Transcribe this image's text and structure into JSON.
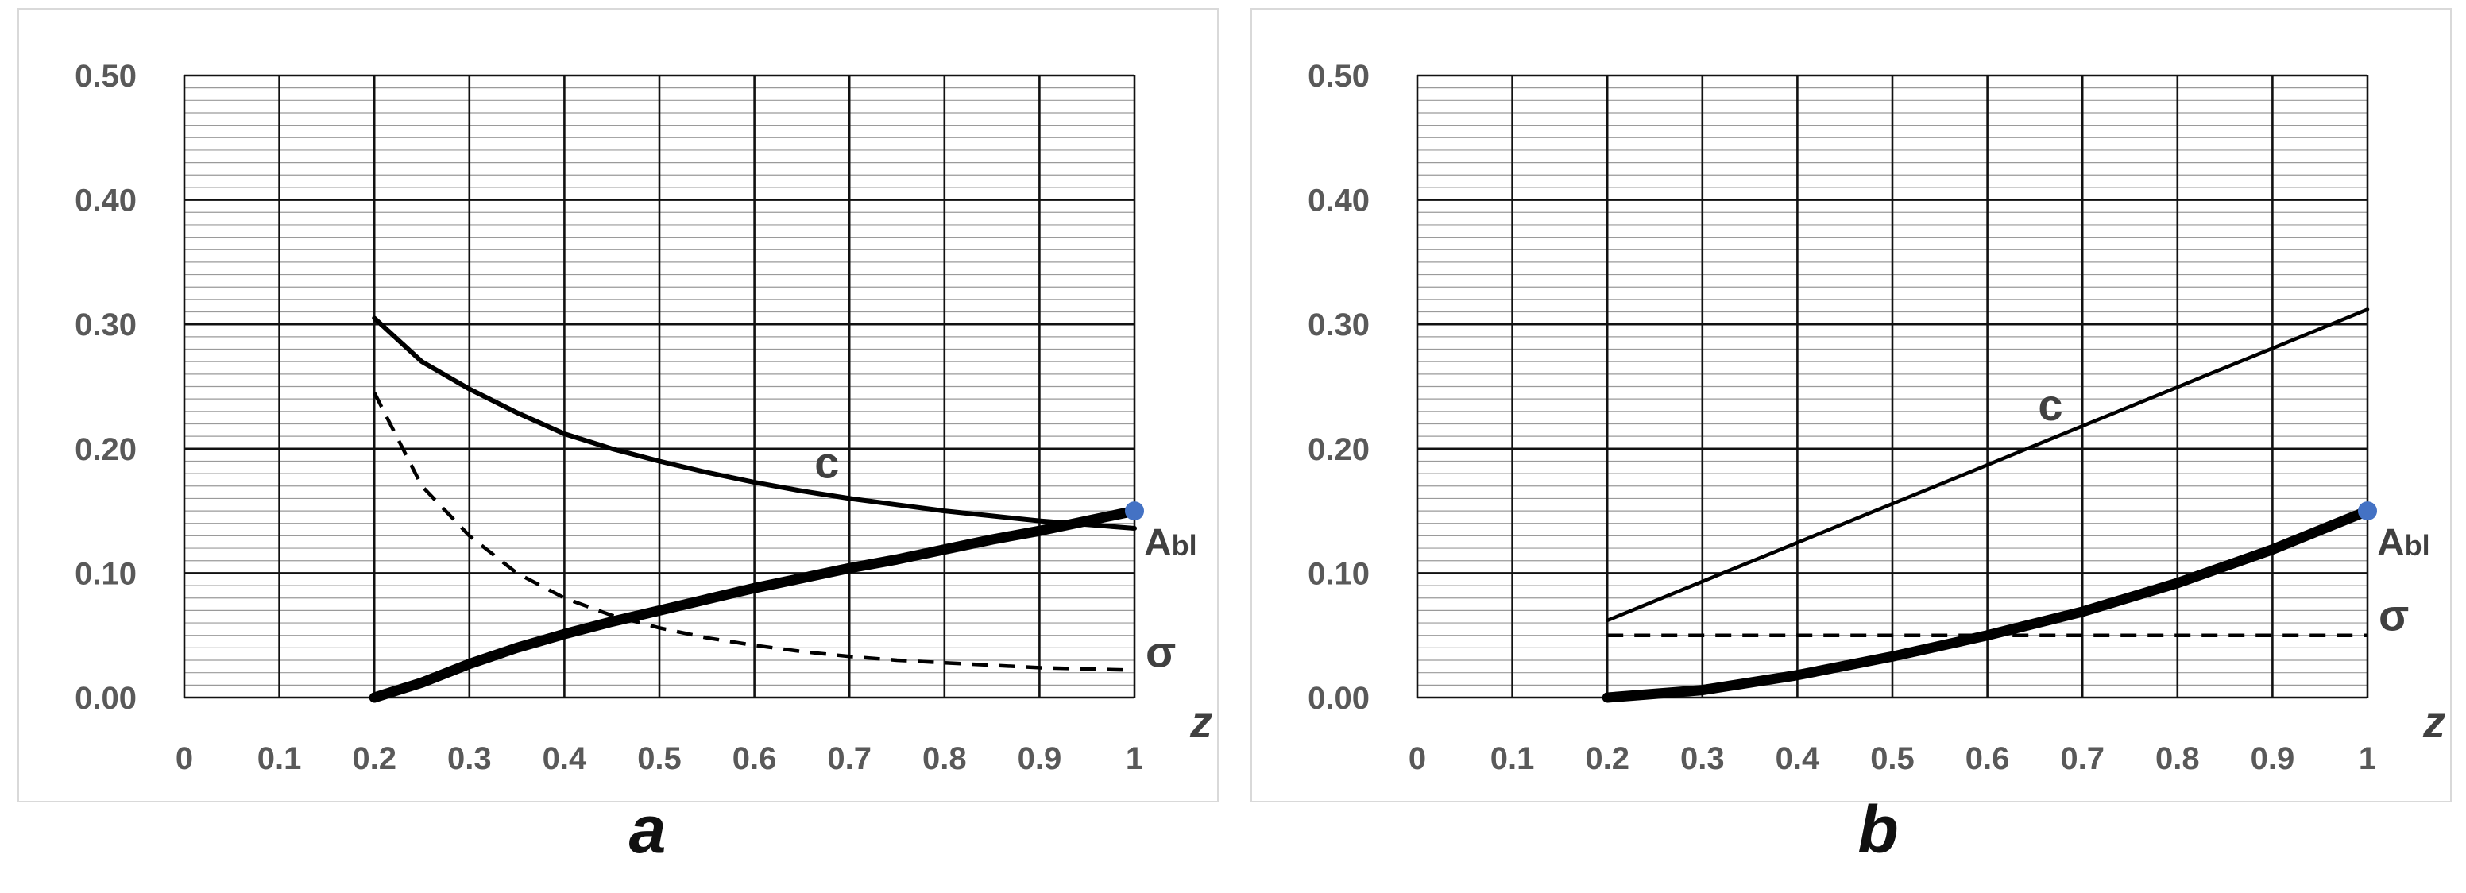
{
  "chart_data": [
    {
      "panel_label": "a",
      "type": "line",
      "xlabel": "z",
      "xlim": [
        0,
        1
      ],
      "ylim": [
        0,
        0.5
      ],
      "x_ticks": [
        "0",
        "0.1",
        "0.2",
        "0.3",
        "0.4",
        "0.5",
        "0.6",
        "0.7",
        "0.8",
        "0.9",
        "1"
      ],
      "y_ticks": [
        "0.00",
        "0.10",
        "0.20",
        "0.30",
        "0.40",
        "0.50"
      ],
      "grid": "on",
      "series": [
        {
          "name": "c",
          "style": "solid-medium",
          "x": [
            0.2,
            0.25,
            0.3,
            0.35,
            0.4,
            0.45,
            0.5,
            0.55,
            0.6,
            0.65,
            0.7,
            0.75,
            0.8,
            0.85,
            0.9,
            0.95,
            1.0
          ],
          "y": [
            0.305,
            0.27,
            0.248,
            0.229,
            0.212,
            0.2,
            0.19,
            0.181,
            0.173,
            0.166,
            0.16,
            0.155,
            0.15,
            0.146,
            0.142,
            0.139,
            0.136
          ]
        },
        {
          "name": "σ",
          "style": "dashed",
          "x": [
            0.2,
            0.25,
            0.3,
            0.35,
            0.4,
            0.45,
            0.5,
            0.55,
            0.6,
            0.65,
            0.7,
            0.75,
            0.8,
            0.85,
            0.9,
            0.95,
            1.0
          ],
          "y": [
            0.245,
            0.17,
            0.13,
            0.1,
            0.08,
            0.066,
            0.056,
            0.048,
            0.042,
            0.037,
            0.033,
            0.03,
            0.028,
            0.026,
            0.024,
            0.023,
            0.022
          ]
        },
        {
          "name": "",
          "style": "solid-thick",
          "x": [
            0.2,
            0.25,
            0.3,
            0.35,
            0.4,
            0.45,
            0.5,
            0.55,
            0.6,
            0.65,
            0.7,
            0.75,
            0.8,
            0.85,
            0.9,
            0.95,
            1.0
          ],
          "y": [
            0.0,
            0.012,
            0.027,
            0.04,
            0.051,
            0.061,
            0.07,
            0.079,
            0.088,
            0.096,
            0.104,
            0.111,
            0.119,
            0.127,
            0.134,
            0.142,
            0.15
          ]
        }
      ],
      "point": {
        "label": "A",
        "subscript": "bl",
        "x": 1.0,
        "y": 0.15,
        "color": "#4472c4"
      }
    },
    {
      "panel_label": "b",
      "type": "line",
      "xlabel": "z",
      "xlim": [
        0,
        1
      ],
      "ylim": [
        0,
        0.5
      ],
      "x_ticks": [
        "0",
        "0.1",
        "0.2",
        "0.3",
        "0.4",
        "0.5",
        "0.6",
        "0.7",
        "0.8",
        "0.9",
        "1"
      ],
      "y_ticks": [
        "0.00",
        "0.10",
        "0.20",
        "0.30",
        "0.40",
        "0.50"
      ],
      "grid": "on",
      "series": [
        {
          "name": "c",
          "style": "solid-medium",
          "x": [
            0.2,
            1.0
          ],
          "y": [
            0.062,
            0.312
          ]
        },
        {
          "name": "σ",
          "style": "dashed",
          "x": [
            0.2,
            1.0
          ],
          "y": [
            0.05,
            0.05
          ]
        },
        {
          "name": "",
          "style": "solid-thick",
          "x": [
            0.2,
            0.3,
            0.4,
            0.5,
            0.6,
            0.7,
            0.8,
            0.9,
            1.0
          ],
          "y": [
            0.0,
            0.006,
            0.018,
            0.033,
            0.05,
            0.069,
            0.092,
            0.119,
            0.15
          ]
        }
      ],
      "point": {
        "label": "A",
        "subscript": "bl",
        "x": 1.0,
        "y": 0.15,
        "color": "#4472c4"
      }
    }
  ]
}
